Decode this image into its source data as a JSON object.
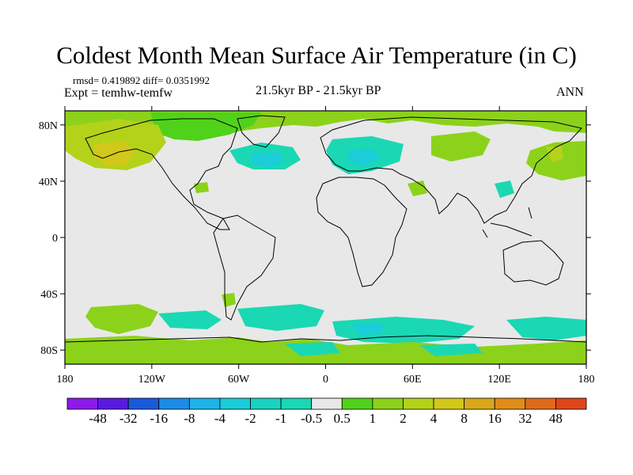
{
  "title": "Coldest Month Mean Surface Air Temperature (in C)",
  "stats_text": "rmsd= 0.419892  diff= 0.0351992",
  "expt_text": "Expt = temhw-temfw",
  "period_text": "21.5kyr BP - 21.5kyr BP",
  "season_text": "ANN",
  "map": {
    "lon_range": [
      -180,
      180
    ],
    "lat_range": [
      -90,
      90
    ],
    "lon_ticks": [
      {
        "value": -180,
        "label": "180"
      },
      {
        "value": -120,
        "label": "120W"
      },
      {
        "value": -60,
        "label": "60W"
      },
      {
        "value": 0,
        "label": "0"
      },
      {
        "value": 60,
        "label": "60E"
      },
      {
        "value": 120,
        "label": "120E"
      },
      {
        "value": 180,
        "label": "180"
      }
    ],
    "lat_ticks": [
      {
        "value": 80,
        "label": "80N"
      },
      {
        "value": 40,
        "label": "40N"
      },
      {
        "value": 0,
        "label": "0"
      },
      {
        "value": -40,
        "label": "40S"
      },
      {
        "value": -80,
        "label": "80S"
      }
    ],
    "background_color": "#e8e8e8",
    "coast_color": "#000000"
  },
  "colorbar": {
    "colors": [
      "#8c1aeb",
      "#5a1ae0",
      "#1a5adc",
      "#1a8ce8",
      "#1ab4e8",
      "#1acdd8",
      "#1ad2c0",
      "#1ad8b4",
      "#e8e8e8",
      "#50d21a",
      "#8cd21a",
      "#b4d21a",
      "#d2c81a",
      "#d8a81a",
      "#e08c1a",
      "#e06a1a",
      "#e0461a"
    ],
    "labels": [
      "-48",
      "-32",
      "-16",
      "-8",
      "-4",
      "-2",
      "-1",
      "-0.5",
      "0.5",
      "1",
      "2",
      "4",
      "8",
      "16",
      "32",
      "48"
    ]
  }
}
